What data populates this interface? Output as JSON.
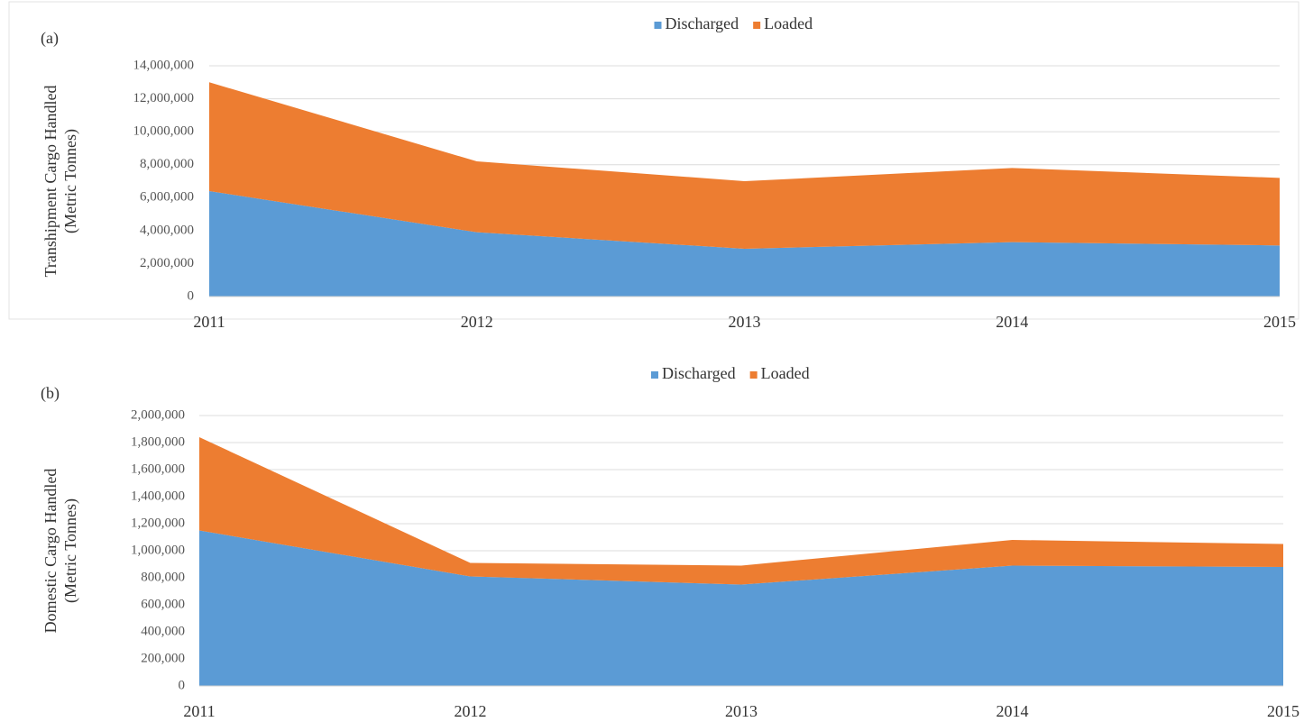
{
  "chart_data": [
    {
      "type": "area",
      "panel_label": "(a)",
      "ylabel": [
        "Transhipment Cargo Handled",
        "(Metric Tonnes)"
      ],
      "x": [
        "2011",
        "2012",
        "2013",
        "2014",
        "2015"
      ],
      "series": [
        {
          "name": "Discharged",
          "color": "#5b9bd5",
          "values": [
            6400000,
            3900000,
            2900000,
            3300000,
            3100000
          ]
        },
        {
          "name": "Loaded",
          "color": "#ed7d31",
          "values": [
            6600000,
            4300000,
            4100000,
            4500000,
            4100000
          ]
        }
      ],
      "ylim": [
        0,
        14000000
      ],
      "yticks": [
        0,
        {
          "value": 2000000,
          "label": "2,000,000"
        },
        {
          "value": 4000000,
          "label": "4,000,000"
        },
        {
          "value": 6000000,
          "label": "6,000,000"
        },
        {
          "value": 8000000,
          "label": "8,000,000"
        },
        {
          "value": 10000000,
          "label": "10,000,000"
        },
        {
          "value": 12000000,
          "label": "12,000,000"
        },
        {
          "value": 14000000,
          "label": "14,000,000"
        }
      ],
      "grid": true,
      "stacked": true,
      "legend": "top"
    },
    {
      "type": "area",
      "panel_label": "(b)",
      "ylabel": [
        "Domestic Cargo Handled",
        "(Metric Tonnes)"
      ],
      "x": [
        "2011",
        "2012",
        "2013",
        "2014",
        "2015"
      ],
      "series": [
        {
          "name": "Discharged",
          "color": "#5b9bd5",
          "values": [
            1150000,
            810000,
            750000,
            890000,
            880000
          ]
        },
        {
          "name": "Loaded",
          "color": "#ed7d31",
          "values": [
            690000,
            100000,
            140000,
            190000,
            170000
          ]
        }
      ],
      "ylim": [
        0,
        2000000
      ],
      "yticks": [
        0,
        {
          "value": 200000,
          "label": "200,000"
        },
        {
          "value": 400000,
          "label": "400,000"
        },
        {
          "value": 600000,
          "label": "600,000"
        },
        {
          "value": 800000,
          "label": "800,000"
        },
        {
          "value": 1000000,
          "label": "1,000,000"
        },
        {
          "value": 1200000,
          "label": "1,200,000"
        },
        {
          "value": 1400000,
          "label": "1,400,000"
        },
        {
          "value": 1600000,
          "label": "1,600,000"
        },
        {
          "value": 1800000,
          "label": "1,800,000"
        },
        {
          "value": 2000000,
          "label": "2,000,000"
        }
      ],
      "grid": true,
      "stacked": true,
      "legend": "top"
    }
  ]
}
